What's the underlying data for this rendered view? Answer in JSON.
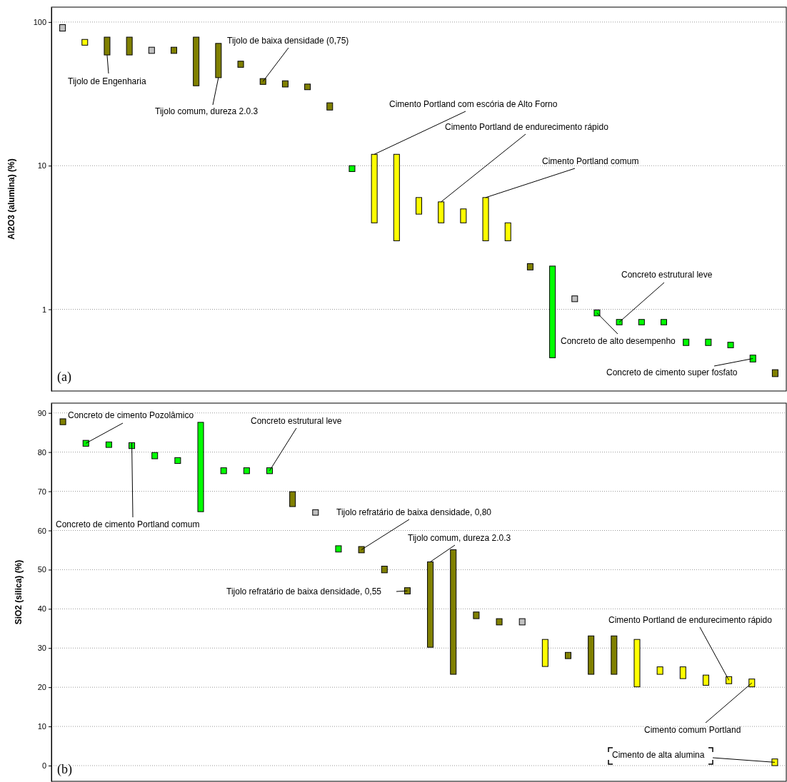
{
  "chart_data": [
    {
      "type": "bar",
      "ylabel": "Al2O3 (alumina) (%)",
      "log": true,
      "grid": "y",
      "tick_labels": "y",
      "ylim": [
        0.27,
        127
      ],
      "yticks": [
        1,
        10,
        100
      ],
      "categories": [
        null,
        null,
        null,
        null,
        null,
        null,
        null,
        null,
        null,
        null,
        null,
        null,
        null,
        null,
        null,
        null,
        null,
        null,
        null,
        null,
        null,
        null,
        null,
        null,
        null,
        null,
        null,
        null,
        null,
        null,
        null,
        null,
        null
      ],
      "base": [
        86.5,
        69,
        59,
        59,
        60.5,
        60.5,
        36,
        41,
        48.4,
        36.8,
        35.3,
        33.8,
        24.4,
        9.1,
        4,
        3,
        4.6,
        4,
        4,
        3,
        3,
        1.88,
        0.46,
        1.13,
        0.9,
        0.78,
        0.78,
        0.78,
        0.56,
        0.56,
        0.54,
        0.43,
        0.34
      ],
      "values": [
        9.5,
        6.7,
        19.5,
        19.5,
        6.3,
        6.3,
        42.5,
        30,
        5,
        3.6,
        3.7,
        3.2,
        3,
        0.9,
        8,
        9,
        1.4,
        1.6,
        1,
        3,
        1,
        0.2,
        1.54,
        0.11,
        0.09,
        0.07,
        0.07,
        0.07,
        0.06,
        0.06,
        0.05,
        0.05,
        0.04
      ],
      "colors": [
        "#c0c0c0",
        "#ffff00",
        "#808000",
        "#808000",
        "#c0c0c0",
        "#808000",
        "#808000",
        "#808000",
        "#808000",
        "#808000",
        "#808000",
        "#808000",
        "#808000",
        "#00ff00",
        "#ffff00",
        "#ffff00",
        "#ffff00",
        "#ffff00",
        "#ffff00",
        "#ffff00",
        "#ffff00",
        "#808000",
        "#00ff00",
        "#c0c0c0",
        "#00ff00",
        "#00ff00",
        "#00ff00",
        "#00ff00",
        "#00ff00",
        "#00ff00",
        "#00ff00",
        "#00ff00",
        "#808000"
      ],
      "annotations": [
        "Tijolo de Engenharia",
        "Tijolo de baixa densidade (0,75)",
        "Tijolo comum, dureza 2.0.3",
        "Cimento Portland com escória de Alto Forno",
        "Cimento Portland de endurecimento rápido",
        "Cimento Portland comum",
        "Concreto estrutural leve",
        "Concreto de alto desempenho",
        "Concreto de cimento super fosfato",
        "(a)"
      ]
    },
    {
      "type": "bar",
      "ylabel": "SiO2 (silica) (%)",
      "grid": "y",
      "tick_labels": "y",
      "ylim": [
        -4,
        92.5
      ],
      "yticks": [
        0,
        10,
        20,
        30,
        40,
        50,
        60,
        70,
        80,
        90
      ],
      "categories": [
        null,
        null,
        null,
        null,
        null,
        null,
        null,
        null,
        null,
        null,
        null,
        null,
        null,
        null,
        null,
        null,
        null,
        null,
        null,
        null,
        null,
        null,
        null,
        null,
        null,
        null,
        null,
        null,
        null,
        null,
        null,
        null
      ],
      "base": [
        87,
        81.5,
        81.2,
        80.9,
        78.3,
        77.1,
        64.8,
        74.5,
        74.5,
        74.5,
        66.1,
        63.9,
        54.5,
        54.3,
        49.2,
        43.8,
        30.2,
        23.3,
        37.5,
        35.9,
        35.9,
        25.3,
        27.3,
        23.3,
        23.3,
        20.1,
        23.3,
        22.2,
        20.5,
        20.9,
        20.1,
        0
      ],
      "values": [
        1.5,
        1.5,
        1.4,
        1.5,
        1.6,
        1.5,
        22.8,
        1.5,
        1.5,
        1.5,
        3.8,
        1.4,
        1.6,
        1.6,
        1.7,
        1.6,
        21.8,
        31.8,
        1.7,
        1.6,
        1.6,
        6.9,
        1.6,
        9.8,
        9.8,
        12.1,
        1.9,
        3,
        2.6,
        1.8,
        2,
        1.7
      ],
      "colors": [
        "#808000",
        "#00ff00",
        "#00ff00",
        "#00ff00",
        "#00ff00",
        "#00ff00",
        "#00ff00",
        "#00ff00",
        "#00ff00",
        "#00ff00",
        "#808000",
        "#c0c0c0",
        "#00ff00",
        "#808000",
        "#808000",
        "#808000",
        "#808000",
        "#808000",
        "#808000",
        "#808000",
        "#c0c0c0",
        "#ffff00",
        "#808000",
        "#808000",
        "#808000",
        "#ffff00",
        "#ffff00",
        "#ffff00",
        "#ffff00",
        "#ffff00",
        "#ffff00",
        "#ffff00"
      ],
      "annotations": [
        "Concreto de cimento Pozolâmico",
        "Concreto de cimento Portland comum",
        "Concreto estrutural leve",
        "Tijolo refratário de baixa densidade, 0,80",
        "Tijolo comum, dureza 2.0.3",
        "Tijolo refratário de baixa densidade, 0,55",
        "Cimento Portland de endurecimento rápido",
        "Cimento comum Portland",
        "Cimento de alta alumina",
        "(b)"
      ]
    }
  ]
}
